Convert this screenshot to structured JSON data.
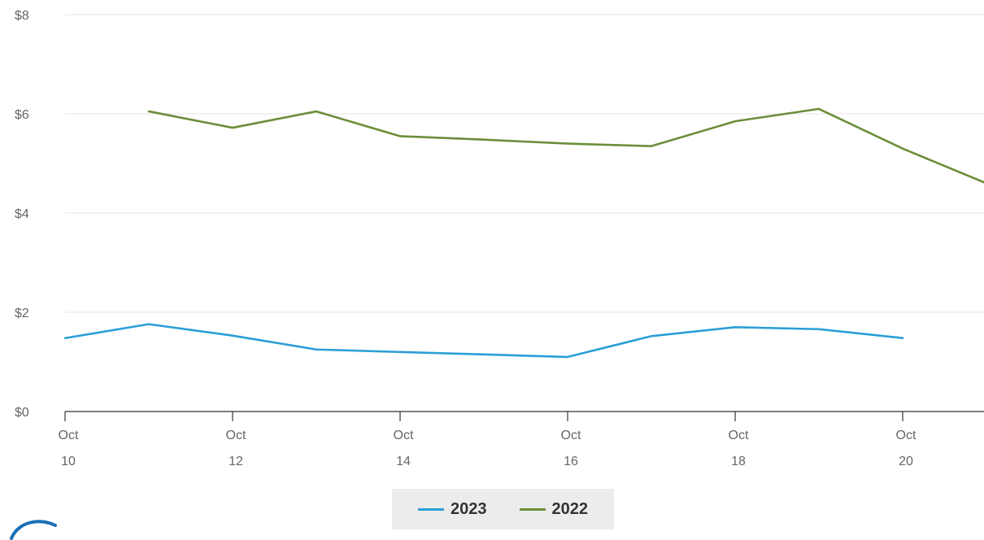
{
  "chart_data": {
    "type": "line",
    "x": [
      "Oct 10",
      "Oct 11",
      "Oct 12",
      "Oct 13",
      "Oct 14",
      "Oct 15",
      "Oct 16",
      "Oct 17",
      "Oct 18",
      "Oct 19",
      "Oct 20",
      "Oct 21"
    ],
    "x_ticks": [
      {
        "month": "Oct",
        "day": "10",
        "index": 0
      },
      {
        "month": "Oct",
        "day": "12",
        "index": 2
      },
      {
        "month": "Oct",
        "day": "14",
        "index": 4
      },
      {
        "month": "Oct",
        "day": "16",
        "index": 6
      },
      {
        "month": "Oct",
        "day": "18",
        "index": 8
      },
      {
        "month": "Oct",
        "day": "20",
        "index": 10
      }
    ],
    "y_ticks": [
      "$0",
      "$2",
      "$4",
      "$6",
      "$8"
    ],
    "y_tick_values": [
      0,
      2,
      4,
      6,
      8
    ],
    "ylim": [
      0,
      8
    ],
    "grid": true,
    "legend_position": "bottom-center",
    "series": [
      {
        "name": "2023",
        "color": "#2b9fd6",
        "values": [
          1.48,
          1.76,
          1.53,
          1.25,
          1.2,
          1.15,
          1.1,
          1.52,
          1.7,
          1.66,
          1.48,
          null
        ]
      },
      {
        "name": "2022",
        "color": "#6b8e3a",
        "values": [
          null,
          6.05,
          5.72,
          6.05,
          5.55,
          5.48,
          5.4,
          5.35,
          5.85,
          6.1,
          5.3,
          4.6
        ]
      }
    ]
  },
  "legend": {
    "items": [
      {
        "label": "2023",
        "color": "#2b9fd6"
      },
      {
        "label": "2022",
        "color": "#6b8e3a"
      }
    ]
  },
  "logo": {
    "color": "#1a6fb5"
  }
}
